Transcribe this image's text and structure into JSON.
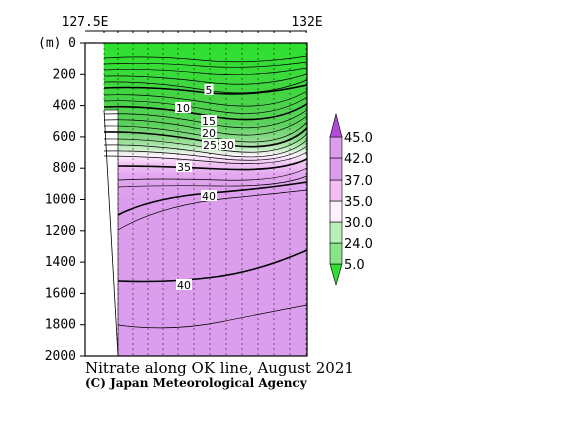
{
  "chart_data": {
    "type": "heatmap",
    "title": "Nitrate along OK line, August 2021",
    "credit": "(C) Japan Meteorological Agency",
    "ylabel": "(m)",
    "ylim": [
      0,
      2000
    ],
    "y_ticks": [
      0,
      200,
      400,
      600,
      800,
      1000,
      1200,
      1400,
      1600,
      1800,
      2000
    ],
    "x_tick_labels": [
      "127.5E",
      "132E"
    ],
    "contour_labels": [
      "5",
      "10",
      "15",
      "20",
      "25",
      "30",
      "35",
      "40",
      "40"
    ],
    "colorbar": {
      "levels": [
        "5.0",
        "24.0",
        "30.0",
        "35.0",
        "37.0",
        "42.0",
        "45.0"
      ],
      "colors": [
        "#33dd33",
        "#88e688",
        "#b8f0b8",
        "#fff0ff",
        "#f4bdf4",
        "#dc9cec",
        "#b04ad8"
      ]
    },
    "data_region": {
      "surface_color": "#2ee02e",
      "deep_color": "#db9ded",
      "bottom_fill": "#ffffff"
    }
  }
}
